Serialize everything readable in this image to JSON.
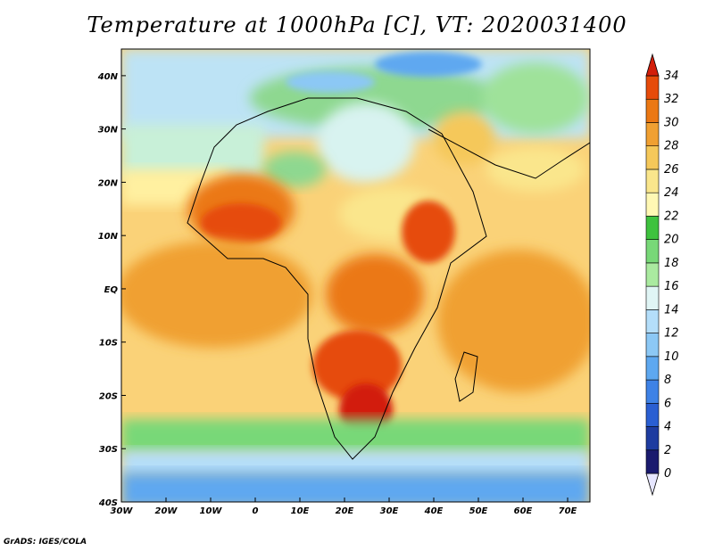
{
  "title": "Temperature at 1000hPa [C], VT: 2020031400",
  "credit": "GrADS: IGES/COLA",
  "map": {
    "lon_range": [
      -30,
      75
    ],
    "lat_range": [
      -40,
      45
    ],
    "lon_ticks": [
      {
        "value": -30,
        "label": "30W"
      },
      {
        "value": -20,
        "label": "20W"
      },
      {
        "value": -10,
        "label": "10W"
      },
      {
        "value": 0,
        "label": "0"
      },
      {
        "value": 10,
        "label": "10E"
      },
      {
        "value": 20,
        "label": "20E"
      },
      {
        "value": 30,
        "label": "30E"
      },
      {
        "value": 40,
        "label": "40E"
      },
      {
        "value": 50,
        "label": "50E"
      },
      {
        "value": 60,
        "label": "60E"
      },
      {
        "value": 70,
        "label": "70E"
      }
    ],
    "lat_ticks": [
      {
        "value": 40,
        "label": "40N"
      },
      {
        "value": 30,
        "label": "30N"
      },
      {
        "value": 20,
        "label": "20N"
      },
      {
        "value": 10,
        "label": "10N"
      },
      {
        "value": 0,
        "label": "EQ"
      },
      {
        "value": -10,
        "label": "10S"
      },
      {
        "value": -20,
        "label": "20S"
      },
      {
        "value": -30,
        "label": "30S"
      },
      {
        "value": -40,
        "label": "40S"
      }
    ]
  },
  "colorbar": {
    "levels": [
      0,
      2,
      4,
      6,
      8,
      10,
      12,
      14,
      16,
      18,
      20,
      22,
      24,
      26,
      28,
      30,
      32,
      34
    ],
    "colors": [
      "#1a1a6e",
      "#1e3ca0",
      "#2a5fd2",
      "#3e82e6",
      "#5ea8f0",
      "#8cc8f5",
      "#b4defa",
      "#e0f5f5",
      "#aaeaa0",
      "#78d878",
      "#3ec23e",
      "#fff8b4",
      "#fae68c",
      "#f5c85a",
      "#f0a032",
      "#eb7814",
      "#e64b0a",
      "#d21e0a"
    ],
    "under_color": "#e6e6ff"
  }
}
